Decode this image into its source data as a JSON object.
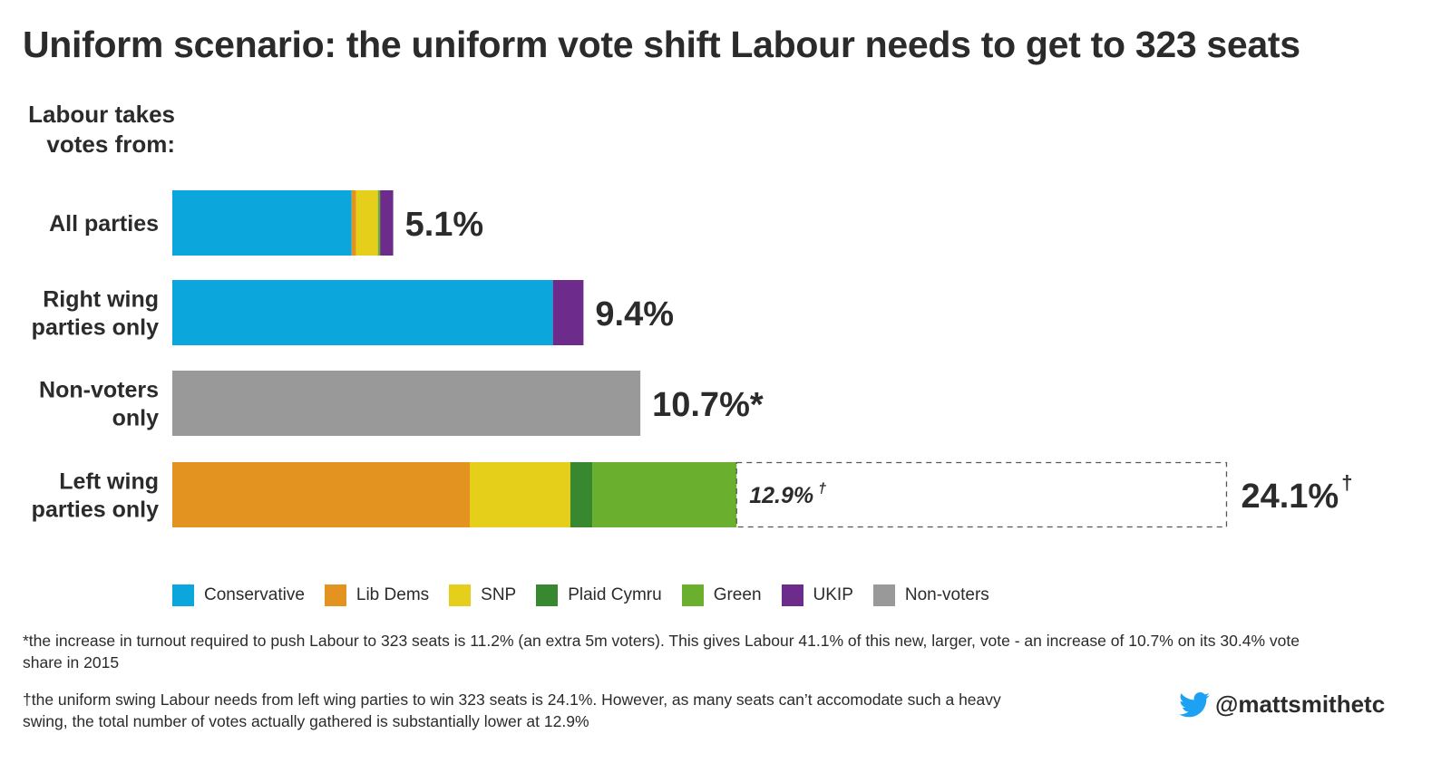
{
  "title": "Uniform scenario: the uniform vote shift Labour needs to get to 323 seats",
  "chart_data": {
    "type": "bar",
    "orientation": "horizontal",
    "stacked": true,
    "axis_heading": "Labour takes votes from:",
    "xlim": [
      0,
      25.5
    ],
    "categories": [
      {
        "label": [
          "All parties"
        ],
        "total_label": "5.1%",
        "total_sup": ""
      },
      {
        "label": [
          "Right wing",
          "parties only"
        ],
        "total_label": "9.4%",
        "total_sup": ""
      },
      {
        "label": [
          "Non-voters",
          "only"
        ],
        "total_label": "10.7%*",
        "total_sup": ""
      },
      {
        "label": [
          "Left wing",
          "parties only"
        ],
        "total_label": "24.1%",
        "total_sup": "†",
        "gathered_label": "12.9%",
        "gathered_sup": "†",
        "gathered_value": 12.9,
        "required_value": 24.1
      }
    ],
    "series": [
      {
        "name": "Conservative",
        "color": "#0aa6dc",
        "values": [
          4.1,
          8.7,
          0,
          0
        ]
      },
      {
        "name": "Lib Dems",
        "color": "#e39420",
        "values": [
          0.1,
          0,
          0,
          6.8
        ]
      },
      {
        "name": "SNP",
        "color": "#e5cf1b",
        "values": [
          0.5,
          0,
          0,
          2.3
        ]
      },
      {
        "name": "Plaid Cymru",
        "color": "#388830",
        "values": [
          0,
          0,
          0,
          0.5
        ]
      },
      {
        "name": "Green",
        "color": "#6aaf2e",
        "values": [
          0.05,
          0,
          0,
          3.3
        ]
      },
      {
        "name": "UKIP",
        "color": "#6d2c8b",
        "values": [
          0.3,
          0.7,
          0,
          0
        ]
      },
      {
        "name": "Non-voters",
        "color": "#999999",
        "values": [
          0,
          0,
          10.7,
          0
        ]
      }
    ]
  },
  "footnotes": {
    "turnout": "*the increase in turnout required to push Labour to 323 seats is 11.2% (an extra 5m voters). This gives Labour 41.1% of this new, larger, vote - an increase of 10.7% on its 30.4% vote share in 2015",
    "swing": "†the uniform swing Labour needs from left wing parties to win 323 seats is 24.1%. However, as many seats can’t accomodate such a heavy swing, the total number of votes actually gathered is substantially lower at 12.9%"
  },
  "twitter_handle": "@mattsmithetc",
  "colors": {
    "text": "#2b2b2b",
    "twitter": "#1da1f2"
  }
}
